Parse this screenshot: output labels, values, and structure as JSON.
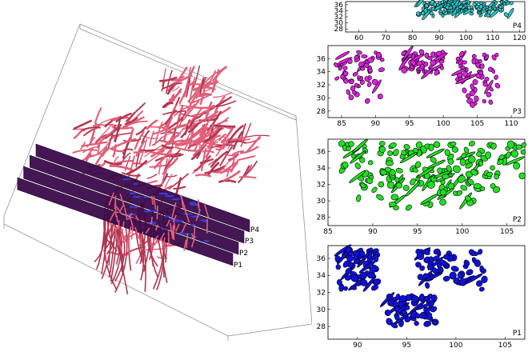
{
  "figure": {
    "slice_labels": [
      "P4",
      "P3",
      "P2",
      "P1"
    ],
    "colors": {
      "fiber": "#e0607a",
      "fiber_dark": "#b03550",
      "slice": "#3a0a4a",
      "p4": "#2fc7c7",
      "p3": "#e020e0",
      "p2": "#20e020",
      "p1": "#1010dd"
    }
  },
  "chart_data": [
    {
      "type": "scatter",
      "label": "P4",
      "xlim": [
        55,
        122
      ],
      "ylim": [
        27,
        37
      ],
      "x_ticks": [
        "60",
        "70",
        "80",
        "90",
        "100",
        "110",
        "120"
      ],
      "y_ticks": [
        "36",
        "34",
        "32",
        "30",
        "28"
      ],
      "clusters": [
        {
          "x": [
            82,
            94
          ],
          "y": [
            32,
            37
          ]
        },
        {
          "x": [
            93,
            101
          ],
          "y": [
            33,
            37
          ]
        },
        {
          "x": [
            102,
            117
          ],
          "y": [
            32,
            37
          ]
        }
      ]
    },
    {
      "type": "scatter",
      "label": "P3",
      "xlim": [
        83,
        112
      ],
      "ylim": [
        27,
        38
      ],
      "x_ticks": [
        "85",
        "90",
        "95",
        "100",
        "105",
        "110"
      ],
      "y_ticks": [
        "36",
        "34",
        "32",
        "30",
        "28"
      ],
      "clusters": [
        {
          "x": [
            84,
            91
          ],
          "y": [
            28.5,
            37
          ]
        },
        {
          "x": [
            94,
            100
          ],
          "y": [
            33.5,
            37
          ]
        },
        {
          "x": [
            102,
            108
          ],
          "y": [
            28,
            37
          ]
        }
      ]
    },
    {
      "type": "scatter",
      "label": "P2",
      "xlim": [
        85,
        107
      ],
      "ylim": [
        27,
        37.5
      ],
      "x_ticks": [
        "85",
        "90",
        "95",
        "100",
        "105"
      ],
      "y_ticks": [
        "36",
        "34",
        "32",
        "30",
        "28"
      ],
      "clusters": [
        {
          "x": [
            86,
            107
          ],
          "y": [
            33,
            37
          ]
        },
        {
          "x": [
            88,
            104
          ],
          "y": [
            29,
            34
          ]
        }
      ]
    },
    {
      "type": "scatter",
      "label": "P1",
      "xlim": [
        87,
        107
      ],
      "ylim": [
        26.5,
        37.5
      ],
      "x_ticks": [
        "90",
        "95",
        "100",
        "105"
      ],
      "y_ticks": [
        "36",
        "34",
        "32",
        "30",
        "28"
      ],
      "clusters": [
        {
          "x": [
            88,
            92
          ],
          "y": [
            32,
            37
          ]
        },
        {
          "x": [
            96,
            103
          ],
          "y": [
            31,
            37
          ]
        },
        {
          "x": [
            93,
            98
          ],
          "y": [
            28,
            31.5
          ]
        }
      ]
    }
  ]
}
